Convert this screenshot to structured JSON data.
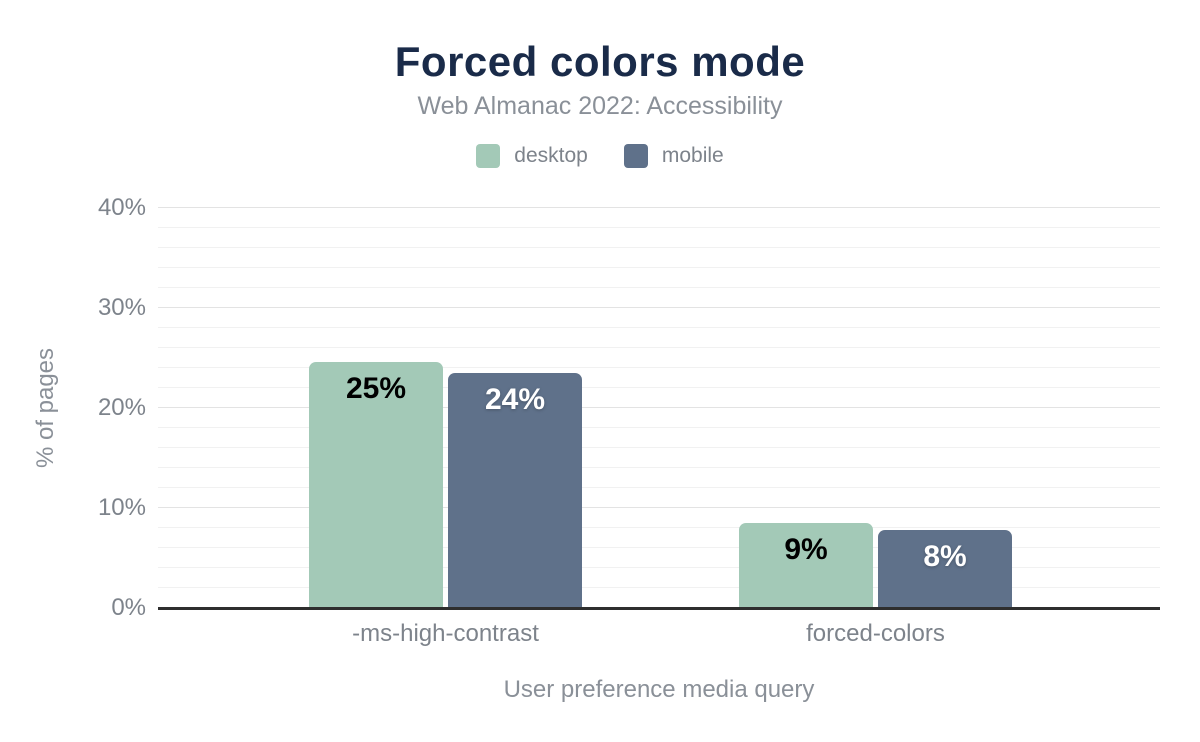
{
  "chart_data": {
    "type": "bar",
    "title": "Forced colors mode",
    "subtitle": "Web Almanac 2022: Accessibility",
    "categories": [
      "-ms-high-contrast",
      "forced-colors"
    ],
    "series": [
      {
        "name": "desktop",
        "values": [
          24.6,
          8.5
        ],
        "labels": [
          "25%",
          "9%"
        ],
        "color": "#a3c9b7",
        "label_color": "#000000"
      },
      {
        "name": "mobile",
        "values": [
          23.5,
          7.8
        ],
        "labels": [
          "24%",
          "8%"
        ],
        "color": "#5f718a",
        "label_color": "#ffffff"
      }
    ],
    "xlabel": "User preference media query",
    "ylabel": "% of pages",
    "ylim": [
      0,
      40
    ],
    "yticks": [
      0,
      10,
      20,
      30,
      40
    ],
    "ytick_labels": [
      "0%",
      "10%",
      "20%",
      "30%",
      "40%"
    ],
    "minor_grid_step": 2,
    "grid": true,
    "legend_position": "top",
    "colors": {
      "title": "#1a2b49",
      "subtitle": "#8a9098",
      "axis_text": "#7d838b",
      "axis_line": "#2e2e2e",
      "grid_major": "#e3e3e3",
      "grid_minor": "#f1f1f1",
      "background": "#ffffff"
    }
  }
}
